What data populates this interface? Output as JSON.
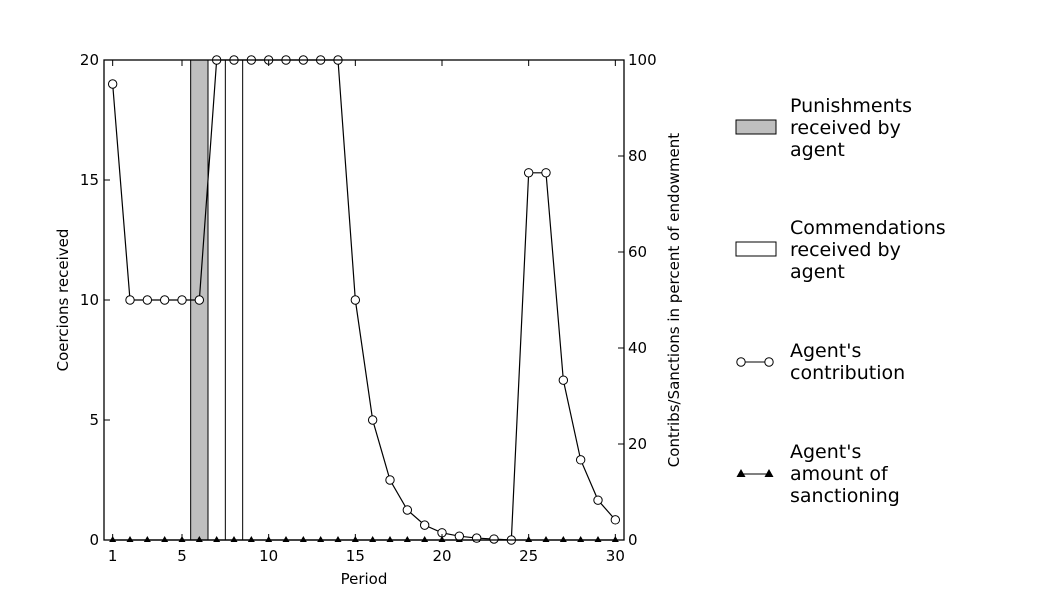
{
  "chart_data": {
    "type": "bar+line",
    "x_label": "Period",
    "y_left_label": "Coercions received",
    "y_right_label": "Contribs/Sanctions in percent of endowment",
    "x_range": [
      0.5,
      30.5
    ],
    "x_ticks": [
      1,
      5,
      10,
      15,
      20,
      25,
      30
    ],
    "y_left_range": [
      0,
      20
    ],
    "y_left_ticks": [
      0,
      5,
      10,
      15,
      20
    ],
    "y_right_range": [
      0,
      100
    ],
    "y_right_ticks": [
      0,
      20,
      40,
      60,
      80,
      100
    ],
    "punishments": {
      "periods": [
        6
      ],
      "values": [
        20
      ]
    },
    "commendations": {
      "periods": [
        8
      ],
      "values": [
        20
      ]
    },
    "contribution": {
      "periods": [
        1,
        2,
        3,
        4,
        5,
        6,
        7,
        8,
        9,
        10,
        11,
        12,
        13,
        14,
        15,
        16,
        17,
        18,
        19,
        20,
        21,
        22,
        23,
        24,
        25,
        26,
        27,
        28,
        29,
        30
      ],
      "values": [
        95,
        50,
        50,
        50,
        50,
        50,
        100,
        100,
        100,
        100,
        100,
        100,
        100,
        100,
        50,
        25,
        12.5,
        6.25,
        3.1,
        1.5,
        0.8,
        0.4,
        0.2,
        0,
        76.5,
        76.5,
        33.3,
        16.7,
        8.3,
        4.2
      ]
    },
    "sanctioning": {
      "periods": [
        1,
        2,
        3,
        4,
        5,
        6,
        7,
        8,
        9,
        10,
        11,
        12,
        13,
        14,
        15,
        16,
        17,
        18,
        19,
        20,
        21,
        22,
        23,
        24,
        25,
        26,
        27,
        28,
        29,
        30
      ],
      "values": [
        0,
        0,
        0,
        0,
        0,
        0,
        0,
        0,
        0,
        0,
        0,
        0,
        0,
        0,
        0,
        0,
        0,
        0,
        0,
        0,
        0,
        0,
        0,
        0,
        0,
        0,
        0,
        0,
        0,
        0
      ]
    },
    "colors": {
      "punishment_fill": "#bfbfbf",
      "commendation_fill": "#ffffff",
      "line": "#000000"
    },
    "legend": [
      {
        "kind": "punishment",
        "lines": [
          "Punishments",
          "received by",
          "agent"
        ]
      },
      {
        "kind": "commendation",
        "lines": [
          "Commendations",
          "received by",
          "agent"
        ]
      },
      {
        "kind": "contribution",
        "lines": [
          "Agent's",
          "contribution"
        ]
      },
      {
        "kind": "sanctioning",
        "lines": [
          "Agent's",
          "amount of",
          "sanctioning"
        ]
      }
    ]
  }
}
